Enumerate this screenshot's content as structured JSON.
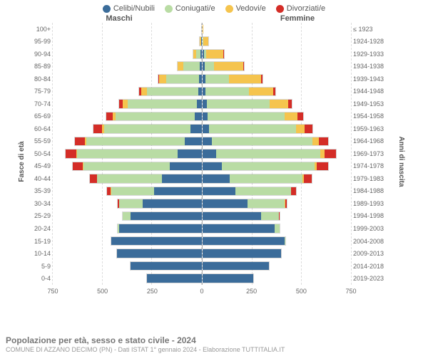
{
  "legend": [
    {
      "label": "Celibi/Nubili",
      "color": "#3b6c9a"
    },
    {
      "label": "Coniugati/e",
      "color": "#b9dca4"
    },
    {
      "label": "Vedovi/e",
      "color": "#f5c44e"
    },
    {
      "label": "Divorziati/e",
      "color": "#d42d27"
    }
  ],
  "headers": {
    "male": "Maschi",
    "female": "Femmine"
  },
  "left_axis_title": "Fasce di età",
  "right_axis_title": "Anni di nascita",
  "xmax": 750,
  "xticks": [
    0,
    250,
    500,
    750
  ],
  "footer": {
    "title": "Popolazione per età, sesso e stato civile - 2024",
    "subtitle": "COMUNE DI AZZANO DECIMO (PN) - Dati ISTAT 1° gennaio 2024 - Elaborazione TUTTITALIA.IT"
  },
  "colors": {
    "single": "#3b6c9a",
    "married": "#b9dca4",
    "widowed": "#f5c44e",
    "divorced": "#d42d27",
    "background": "#ffffff",
    "grid": "#dddddd",
    "text": "#666666"
  },
  "chart": {
    "type": "population-pyramid",
    "stacking_order": [
      "single",
      "married",
      "widowed",
      "divorced"
    ],
    "bar_height_ratio": 0.78,
    "grid_dash": true,
    "title_fontsize": 12,
    "label_fontsize": 9,
    "legend_fontsize": 11
  },
  "rows": [
    {
      "age": "100+",
      "birth": "≤ 1923",
      "m": {
        "single": 0,
        "married": 0,
        "widowed": 3,
        "divorced": 0
      },
      "f": {
        "single": 0,
        "married": 0,
        "widowed": 5,
        "divorced": 0
      }
    },
    {
      "age": "95-99",
      "birth": "1924-1928",
      "m": {
        "single": 2,
        "married": 3,
        "widowed": 6,
        "divorced": 0
      },
      "f": {
        "single": 3,
        "married": 2,
        "widowed": 30,
        "divorced": 0
      }
    },
    {
      "age": "90-94",
      "birth": "1929-1933",
      "m": {
        "single": 5,
        "married": 25,
        "widowed": 15,
        "divorced": 0
      },
      "f": {
        "single": 8,
        "married": 12,
        "widowed": 90,
        "divorced": 2
      }
    },
    {
      "age": "85-89",
      "birth": "1934-1938",
      "m": {
        "single": 8,
        "married": 85,
        "widowed": 30,
        "divorced": 2
      },
      "f": {
        "single": 12,
        "married": 50,
        "widowed": 150,
        "divorced": 3
      }
    },
    {
      "age": "80-84",
      "birth": "1939-1943",
      "m": {
        "single": 12,
        "married": 170,
        "widowed": 35,
        "divorced": 5
      },
      "f": {
        "single": 15,
        "married": 120,
        "widowed": 165,
        "divorced": 6
      }
    },
    {
      "age": "75-79",
      "birth": "1944-1948",
      "m": {
        "single": 18,
        "married": 260,
        "widowed": 30,
        "divorced": 10
      },
      "f": {
        "single": 18,
        "married": 220,
        "widowed": 125,
        "divorced": 10
      }
    },
    {
      "age": "70-74",
      "birth": "1949-1953",
      "m": {
        "single": 25,
        "married": 350,
        "widowed": 25,
        "divorced": 20
      },
      "f": {
        "single": 22,
        "married": 320,
        "widowed": 95,
        "divorced": 18
      }
    },
    {
      "age": "65-69",
      "birth": "1954-1958",
      "m": {
        "single": 35,
        "married": 400,
        "widowed": 18,
        "divorced": 30
      },
      "f": {
        "single": 28,
        "married": 390,
        "widowed": 65,
        "divorced": 28
      }
    },
    {
      "age": "60-64",
      "birth": "1959-1963",
      "m": {
        "single": 55,
        "married": 440,
        "widowed": 12,
        "divorced": 40
      },
      "f": {
        "single": 35,
        "married": 440,
        "widowed": 45,
        "divorced": 38
      }
    },
    {
      "age": "55-59",
      "birth": "1964-1968",
      "m": {
        "single": 85,
        "married": 500,
        "widowed": 8,
        "divorced": 50
      },
      "f": {
        "single": 50,
        "married": 510,
        "widowed": 30,
        "divorced": 50
      }
    },
    {
      "age": "50-54",
      "birth": "1969-1973",
      "m": {
        "single": 120,
        "married": 510,
        "widowed": 5,
        "divorced": 55
      },
      "f": {
        "single": 70,
        "married": 530,
        "widowed": 20,
        "divorced": 58
      }
    },
    {
      "age": "45-49",
      "birth": "1974-1978",
      "m": {
        "single": 160,
        "married": 440,
        "widowed": 3,
        "divorced": 50
      },
      "f": {
        "single": 100,
        "married": 470,
        "widowed": 12,
        "divorced": 55
      }
    },
    {
      "age": "40-44",
      "birth": "1979-1983",
      "m": {
        "single": 200,
        "married": 330,
        "widowed": 2,
        "divorced": 35
      },
      "f": {
        "single": 140,
        "married": 370,
        "widowed": 6,
        "divorced": 40
      }
    },
    {
      "age": "35-39",
      "birth": "1984-1988",
      "m": {
        "single": 240,
        "married": 220,
        "widowed": 1,
        "divorced": 20
      },
      "f": {
        "single": 170,
        "married": 280,
        "widowed": 3,
        "divorced": 22
      }
    },
    {
      "age": "30-34",
      "birth": "1989-1993",
      "m": {
        "single": 300,
        "married": 120,
        "widowed": 0,
        "divorced": 8
      },
      "f": {
        "single": 230,
        "married": 190,
        "widowed": 1,
        "divorced": 10
      }
    },
    {
      "age": "25-29",
      "birth": "1994-1998",
      "m": {
        "single": 360,
        "married": 40,
        "widowed": 0,
        "divorced": 2
      },
      "f": {
        "single": 300,
        "married": 90,
        "widowed": 0,
        "divorced": 3
      }
    },
    {
      "age": "20-24",
      "birth": "1999-2003",
      "m": {
        "single": 420,
        "married": 8,
        "widowed": 0,
        "divorced": 0
      },
      "f": {
        "single": 370,
        "married": 25,
        "widowed": 0,
        "divorced": 0
      }
    },
    {
      "age": "15-19",
      "birth": "2004-2008",
      "m": {
        "single": 460,
        "married": 0,
        "widowed": 0,
        "divorced": 0
      },
      "f": {
        "single": 420,
        "married": 2,
        "widowed": 0,
        "divorced": 0
      }
    },
    {
      "age": "10-14",
      "birth": "2009-2013",
      "m": {
        "single": 430,
        "married": 0,
        "widowed": 0,
        "divorced": 0
      },
      "f": {
        "single": 400,
        "married": 0,
        "widowed": 0,
        "divorced": 0
      }
    },
    {
      "age": "5-9",
      "birth": "2014-2018",
      "m": {
        "single": 360,
        "married": 0,
        "widowed": 0,
        "divorced": 0
      },
      "f": {
        "single": 340,
        "married": 0,
        "widowed": 0,
        "divorced": 0
      }
    },
    {
      "age": "0-4",
      "birth": "2019-2023",
      "m": {
        "single": 280,
        "married": 0,
        "widowed": 0,
        "divorced": 0
      },
      "f": {
        "single": 260,
        "married": 0,
        "widowed": 0,
        "divorced": 0
      }
    }
  ]
}
